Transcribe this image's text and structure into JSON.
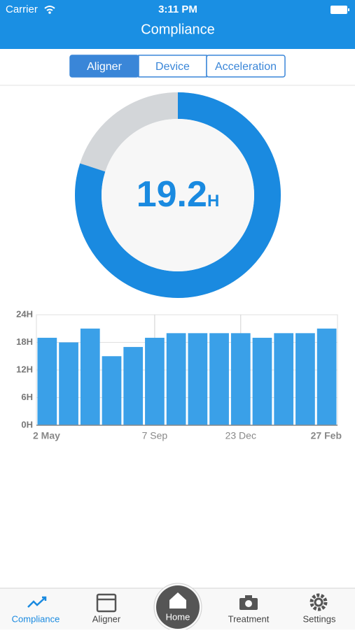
{
  "status_bar": {
    "carrier": "Carrier",
    "time": "3:11 PM"
  },
  "header": {
    "title": "Compliance"
  },
  "tabs": {
    "items": [
      "Aligner",
      "Device",
      "Acceleration"
    ],
    "selected": 0
  },
  "donut": {
    "value": 19.2,
    "unit": "H",
    "range": [
      0,
      24
    ],
    "color": "#1a8ae0",
    "track_color": "#d3d6d9"
  },
  "bar_chart": {
    "type": "bar",
    "categories": [
      "2 May",
      null,
      null,
      null,
      null,
      "7 Sep",
      null,
      null,
      null,
      "23 Dec",
      null,
      null,
      null,
      "27 Feb"
    ],
    "values": [
      19,
      18,
      21,
      15,
      17,
      19,
      20,
      20,
      20,
      20,
      19,
      20,
      20,
      21
    ],
    "color": "#3aa0e8",
    "ylim": [
      0,
      24
    ],
    "yticks": [
      {
        "value": 0,
        "label": "0H"
      },
      {
        "value": 6,
        "label": "6H"
      },
      {
        "value": 12,
        "label": "12H"
      },
      {
        "value": 18,
        "label": "18H"
      },
      {
        "value": 24,
        "label": "24H"
      }
    ],
    "grid": true
  },
  "tab_bar": {
    "items": [
      "Compliance",
      "Aligner",
      "Home",
      "Treatment",
      "Settings"
    ],
    "selected": 0
  }
}
